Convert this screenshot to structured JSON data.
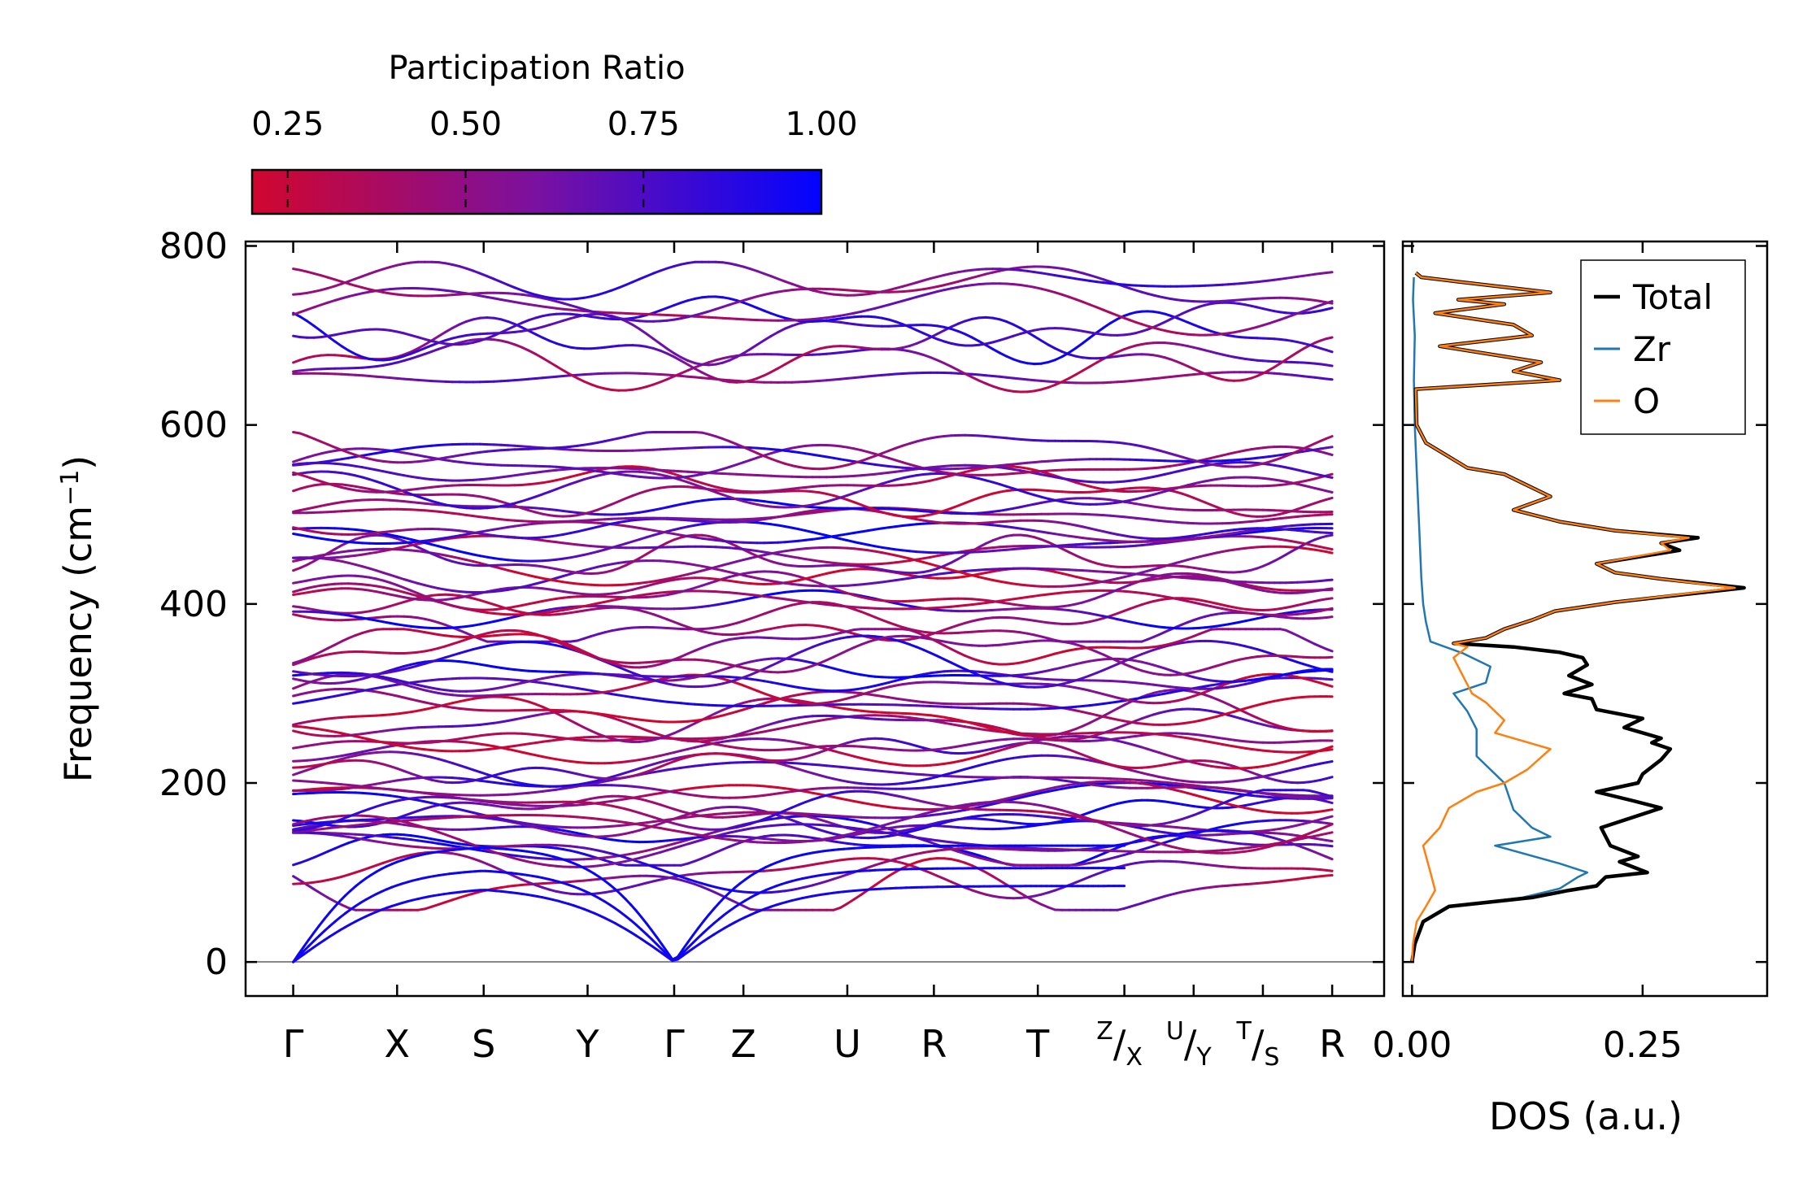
{
  "chart_data": [
    {
      "type": "line",
      "title": "",
      "ylabel": "Frequency (cm",
      "ylabel_sup": "−1",
      "ylabel_close": ")",
      "ylim": [
        -38,
        805
      ],
      "yticks": [
        "0",
        "200",
        "400",
        "600",
        "800"
      ],
      "ytick_values": [
        0,
        200,
        400,
        600,
        800
      ],
      "high_symmetry_points": [
        {
          "label": "Γ",
          "x": 0
        },
        {
          "label": "X",
          "x": 1.2
        },
        {
          "label": "S",
          "x": 2.2
        },
        {
          "label": "Y",
          "x": 3.4
        },
        {
          "label": "Γ",
          "x": 4.4
        },
        {
          "label": "Z",
          "x": 5.2
        },
        {
          "label": "U",
          "x": 6.4
        },
        {
          "label": "R",
          "x": 7.4
        },
        {
          "label": "T",
          "x": 8.6
        },
        {
          "sup": "Z",
          "sub": "X",
          "x": 9.6
        },
        {
          "sup": "U",
          "sub": "Y",
          "x": 10.4
        },
        {
          "sup": "T",
          "sub": "S",
          "x": 11.2
        },
        {
          "label": "R",
          "x": 12.0
        }
      ],
      "path_breaks_after": [
        9.6,
        10.4,
        11.2
      ],
      "colorbar": {
        "label": "Participation Ratio",
        "ticks": [
          "0.25",
          "0.50",
          "0.75",
          "1.00"
        ],
        "tick_values": [
          0.25,
          0.5,
          0.75,
          1.0
        ],
        "range": [
          0.2,
          1.0
        ],
        "color_low": "#d1062e",
        "color_mid": "#7a11a0",
        "color_high": "#0303ff"
      },
      "optical_band_groups": [
        {
          "range": [
            645,
            770
          ],
          "count": 8
        },
        {
          "range": [
            370,
            580
          ],
          "count": 22
        },
        {
          "range": [
            120,
            360
          ],
          "count": 24
        },
        {
          "range": [
            70,
            180
          ],
          "count": 6
        }
      ],
      "acoustic_branches_zero_at": [
        "Γ"
      ]
    },
    {
      "type": "line",
      "xlabel": "DOS (a.u.)",
      "xlim": [
        -0.01,
        0.385
      ],
      "xticks": [
        "0.00",
        "0.25"
      ],
      "xtick_values": [
        0.0,
        0.25
      ],
      "ylim": [
        -38,
        805
      ],
      "series": [
        {
          "name": "Total",
          "color": "#000000",
          "points": [
            [
              0,
              0
            ],
            [
              0.003,
              20
            ],
            [
              0.012,
              45
            ],
            [
              0.04,
              62
            ],
            [
              0.13,
              72
            ],
            [
              0.17,
              80
            ],
            [
              0.2,
              85
            ],
            [
              0.21,
              95
            ],
            [
              0.255,
              100
            ],
            [
              0.225,
              112
            ],
            [
              0.245,
              118
            ],
            [
              0.215,
              130
            ],
            [
              0.205,
              150
            ],
            [
              0.27,
              172
            ],
            [
              0.24,
              180
            ],
            [
              0.22,
              185
            ],
            [
              0.2,
              190
            ],
            [
              0.245,
              200
            ],
            [
              0.25,
              210
            ],
            [
              0.27,
              226
            ],
            [
              0.28,
              238
            ],
            [
              0.26,
              245
            ],
            [
              0.27,
              250
            ],
            [
              0.23,
              262
            ],
            [
              0.25,
              272
            ],
            [
              0.2,
              282
            ],
            [
              0.195,
              294
            ],
            [
              0.165,
              300
            ],
            [
              0.195,
              310
            ],
            [
              0.17,
              320
            ],
            [
              0.19,
              332
            ],
            [
              0.185,
              340
            ],
            [
              0.16,
              346
            ],
            [
              0.11,
              352
            ],
            [
              0.045,
              356
            ],
            [
              0.08,
              362
            ],
            [
              0.1,
              372
            ],
            [
              0.13,
              382
            ],
            [
              0.155,
              392
            ],
            [
              0.22,
              402
            ],
            [
              0.36,
              418
            ],
            [
              0.27,
              428
            ],
            [
              0.22,
              435
            ],
            [
              0.2,
              445
            ],
            [
              0.29,
              460
            ],
            [
              0.27,
              468
            ],
            [
              0.31,
              474
            ],
            [
              0.22,
              482
            ],
            [
              0.16,
              492
            ],
            [
              0.11,
              505
            ],
            [
              0.15,
              520
            ],
            [
              0.12,
              535
            ],
            [
              0.1,
              545
            ],
            [
              0.06,
              552
            ],
            [
              0.015,
              580
            ],
            [
              0.005,
              600
            ],
            [
              0.004,
              640
            ],
            [
              0.16,
              650
            ],
            [
              0.11,
              660
            ],
            [
              0.14,
              670
            ],
            [
              0.03,
              688
            ],
            [
              0.13,
              700
            ],
            [
              0.11,
              712
            ],
            [
              0.025,
              725
            ],
            [
              0.1,
              735
            ],
            [
              0.05,
              740
            ],
            [
              0.15,
              748
            ],
            [
              0.05,
              760
            ],
            [
              0.01,
              765
            ],
            [
              0.004,
              770
            ]
          ]
        },
        {
          "name": "Zr",
          "color": "#1f77b4",
          "points": [
            [
              0,
              0
            ],
            [
              0.003,
              20
            ],
            [
              0.012,
              45
            ],
            [
              0.04,
              62
            ],
            [
              0.12,
              72
            ],
            [
              0.16,
              82
            ],
            [
              0.18,
              95
            ],
            [
              0.19,
              100
            ],
            [
              0.16,
              110
            ],
            [
              0.09,
              130
            ],
            [
              0.15,
              140
            ],
            [
              0.13,
              150
            ],
            [
              0.11,
              170
            ],
            [
              0.1,
              200
            ],
            [
              0.07,
              230
            ],
            [
              0.07,
              260
            ],
            [
              0.06,
              280
            ],
            [
              0.045,
              300
            ],
            [
              0.08,
              312
            ],
            [
              0.085,
              330
            ],
            [
              0.055,
              345
            ],
            [
              0.02,
              358
            ],
            [
              0.015,
              380
            ],
            [
              0.012,
              400
            ],
            [
              0.01,
              430
            ],
            [
              0.008,
              480
            ],
            [
              0.005,
              550
            ],
            [
              0.003,
              600
            ],
            [
              0.002,
              650
            ],
            [
              0.003,
              700
            ],
            [
              0.001,
              740
            ],
            [
              0.002,
              765
            ]
          ]
        },
        {
          "name": "O",
          "color": "#ff7f0e",
          "points": [
            [
              0,
              0
            ],
            [
              0.001,
              20
            ],
            [
              0.005,
              45
            ],
            [
              0.015,
              62
            ],
            [
              0.025,
              80
            ],
            [
              0.02,
              100
            ],
            [
              0.012,
              130
            ],
            [
              0.03,
              150
            ],
            [
              0.04,
              172
            ],
            [
              0.07,
              190
            ],
            [
              0.1,
              200
            ],
            [
              0.125,
              215
            ],
            [
              0.15,
              238
            ],
            [
              0.09,
              256
            ],
            [
              0.1,
              270
            ],
            [
              0.08,
              290
            ],
            [
              0.065,
              300
            ],
            [
              0.055,
              320
            ],
            [
              0.045,
              340
            ],
            [
              0.06,
              352
            ],
            [
              0.045,
              356
            ],
            [
              0.08,
              362
            ],
            [
              0.1,
              372
            ],
            [
              0.13,
              382
            ],
            [
              0.155,
              392
            ],
            [
              0.22,
              402
            ],
            [
              0.35,
              418
            ],
            [
              0.27,
              428
            ],
            [
              0.22,
              435
            ],
            [
              0.2,
              445
            ],
            [
              0.28,
              460
            ],
            [
              0.27,
              468
            ],
            [
              0.3,
              474
            ],
            [
              0.22,
              482
            ],
            [
              0.16,
              492
            ],
            [
              0.11,
              505
            ],
            [
              0.15,
              520
            ],
            [
              0.12,
              535
            ],
            [
              0.1,
              545
            ],
            [
              0.06,
              552
            ],
            [
              0.015,
              580
            ],
            [
              0.005,
              600
            ],
            [
              0.004,
              640
            ],
            [
              0.16,
              650
            ],
            [
              0.11,
              660
            ],
            [
              0.14,
              670
            ],
            [
              0.03,
              688
            ],
            [
              0.13,
              700
            ],
            [
              0.11,
              712
            ],
            [
              0.025,
              725
            ],
            [
              0.1,
              735
            ],
            [
              0.05,
              740
            ],
            [
              0.15,
              748
            ],
            [
              0.05,
              760
            ],
            [
              0.01,
              765
            ],
            [
              0.004,
              770
            ]
          ]
        }
      ],
      "legend": {
        "placement": "top-right",
        "entries": [
          "Total",
          "Zr",
          "O"
        ]
      }
    }
  ]
}
